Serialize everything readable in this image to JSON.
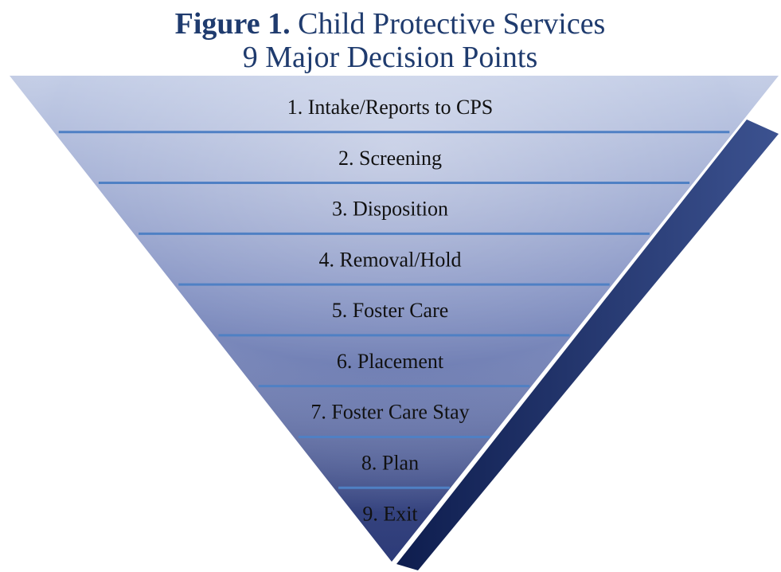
{
  "title": {
    "bold": "Figure 1.",
    "rest": "Child Protective Services",
    "line2": "9 Major Decision Points"
  },
  "levels": [
    "1. Intake/Reports to CPS",
    "2. Screening",
    "3. Disposition",
    "4. Removal/Hold",
    "5. Foster Care",
    "6. Placement",
    "7. Foster Care Stay",
    "8. Plan",
    "9. Exit"
  ]
}
